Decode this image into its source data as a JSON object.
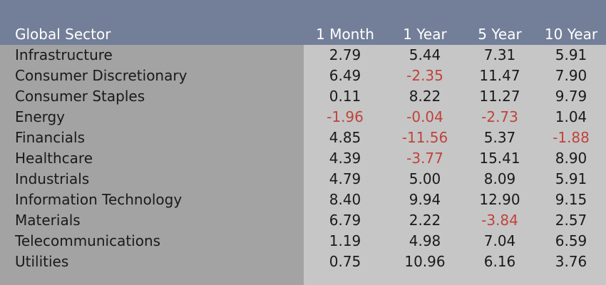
{
  "colors": {
    "header_bg": "#737f98",
    "header_text": "#ffffff",
    "left_column_bg": "#a3a3a3",
    "right_columns_bg": "#c6c6c6",
    "body_text": "#1a1a1a",
    "negative_text": "#c0433b"
  },
  "table": {
    "headers": [
      "Global Sector",
      "1 Month",
      "1 Year",
      "5 Year",
      "10 Year"
    ],
    "rows": [
      [
        "Infrastructure",
        "2.79",
        "5.44",
        "7.31",
        "5.91"
      ],
      [
        "Consumer Discretionary",
        "6.49",
        "-2.35",
        "11.47",
        "7.90"
      ],
      [
        "Consumer Staples",
        "0.11",
        "8.22",
        "11.27",
        "9.79"
      ],
      [
        "Energy",
        "-1.96",
        "-0.04",
        "-2.73",
        "1.04"
      ],
      [
        "Financials",
        "4.85",
        "-11.56",
        "5.37",
        "-1.88"
      ],
      [
        "Healthcare",
        "4.39",
        "-3.77",
        "15.41",
        "8.90"
      ],
      [
        "Industrials",
        "4.79",
        "5.00",
        "8.09",
        "5.91"
      ],
      [
        "Information Technology",
        "8.40",
        "9.94",
        "12.90",
        "9.15"
      ],
      [
        "Materials",
        "6.79",
        "2.22",
        "-3.84",
        "2.57"
      ],
      [
        "Telecommunications",
        "1.19",
        "4.98",
        "7.04",
        "6.59"
      ],
      [
        "Utilities",
        "0.75",
        "10.96",
        "6.16",
        "3.76"
      ]
    ]
  }
}
